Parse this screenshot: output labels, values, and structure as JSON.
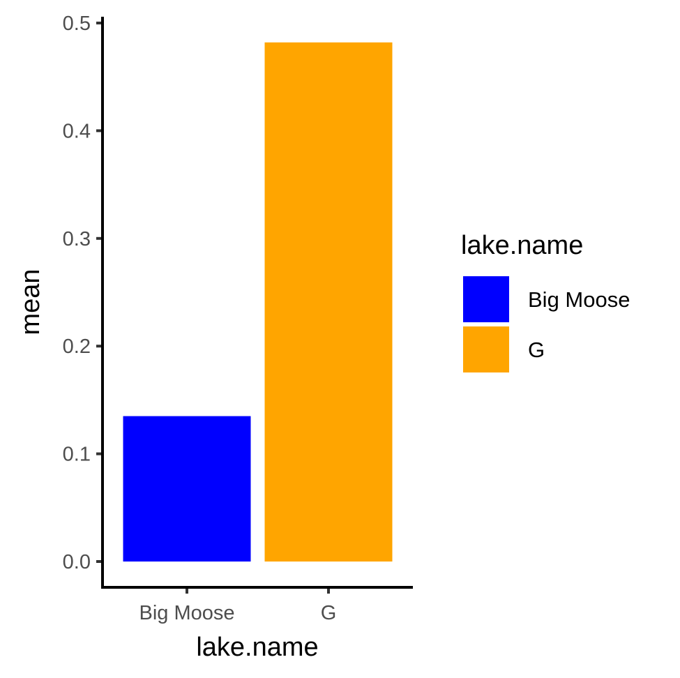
{
  "chart_data": {
    "type": "bar",
    "title": "",
    "xlabel": "lake.name",
    "ylabel": "mean",
    "categories": [
      "Big Moose",
      "G"
    ],
    "values": [
      0.135,
      0.482
    ],
    "colors": [
      "#0000ff",
      "#ffa500"
    ],
    "ylim": [
      0,
      0.5
    ],
    "yticks": [
      "0.0",
      "0.1",
      "0.2",
      "0.3",
      "0.4",
      "0.5"
    ],
    "ytick_values": [
      0,
      0.1,
      0.2,
      0.3,
      0.4,
      0.5
    ],
    "grid": false,
    "legend": {
      "title": "lake.name",
      "position": "right",
      "entries": [
        {
          "label": "Big Moose",
          "color": "#0000ff"
        },
        {
          "label": "G",
          "color": "#ffa500"
        }
      ]
    }
  }
}
